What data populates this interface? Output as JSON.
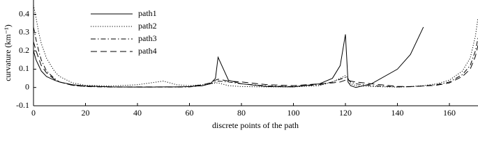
{
  "chart_data": {
    "type": "line",
    "x_label": "discrete points of the path",
    "y_label": "curvature (km⁻¹)",
    "x": [
      0,
      1,
      2,
      3,
      5,
      8,
      10,
      15,
      20,
      30,
      40,
      45,
      50,
      55,
      60,
      65,
      68,
      70,
      71,
      75,
      80,
      90,
      100,
      110,
      115,
      118,
      120,
      121,
      122,
      124,
      130,
      140,
      145,
      150,
      155,
      160,
      165,
      168,
      170,
      171
    ],
    "series": [
      {
        "name": "path1",
        "color": "#000000",
        "dash": "solid",
        "values": [
          0.2,
          0.15,
          0.12,
          0.09,
          0.06,
          0.04,
          0.03,
          0.015,
          0.008,
          0.003,
          0.002,
          0.002,
          0.003,
          0.003,
          0.005,
          0.01,
          0.02,
          0.05,
          0.165,
          0.04,
          0.02,
          0.005,
          0.003,
          0.02,
          0.05,
          0.12,
          0.29,
          0.03,
          0.01,
          0,
          0.02,
          0.1,
          0.18,
          0.33,
          null,
          null,
          null,
          null,
          null,
          null
        ]
      },
      {
        "name": "path2",
        "color": "#000000",
        "dash": "dotted",
        "values": [
          0.45,
          0.38,
          0.3,
          0.24,
          0.16,
          0.09,
          0.06,
          0.025,
          0.012,
          0.008,
          0.015,
          0.025,
          0.035,
          0.015,
          0.01,
          0.015,
          0.02,
          0.025,
          0.025,
          0.01,
          0.005,
          0.003,
          0.003,
          0.01,
          0.03,
          0.05,
          0.065,
          0.05,
          0.02,
          0.01,
          0.005,
          0.002,
          0.005,
          0.01,
          0.02,
          0.04,
          0.09,
          0.16,
          0.28,
          0.38
        ]
      },
      {
        "name": "path3",
        "color": "#000000",
        "dash": "dashdot",
        "values": [
          0.33,
          0.26,
          0.2,
          0.15,
          0.09,
          0.05,
          0.03,
          0.012,
          0.005,
          0.002,
          0.002,
          0.002,
          0.002,
          0.002,
          0.003,
          0.01,
          0.02,
          0.03,
          0.035,
          0.03,
          0.02,
          0.008,
          0.005,
          0.015,
          0.03,
          0.045,
          0.055,
          0.045,
          0.03,
          0.02,
          0.01,
          0.003,
          0.004,
          0.008,
          0.015,
          0.03,
          0.07,
          0.12,
          0.2,
          0.27
        ]
      },
      {
        "name": "path4",
        "color": "#000000",
        "dash": "dashed",
        "values": [
          0.25,
          0.2,
          0.16,
          0.12,
          0.08,
          0.045,
          0.03,
          0.012,
          0.006,
          0.003,
          0.003,
          0.003,
          0.003,
          0.003,
          0.005,
          0.015,
          0.025,
          0.04,
          0.045,
          0.035,
          0.03,
          0.015,
          0.01,
          0.02,
          0.025,
          0.03,
          0.04,
          0.04,
          0.035,
          0.03,
          0.02,
          0.006,
          0.005,
          0.008,
          0.012,
          0.025,
          0.06,
          0.1,
          0.17,
          0.23
        ]
      }
    ],
    "xlim": [
      0,
      171
    ],
    "xticks": [
      0,
      20,
      40,
      60,
      80,
      100,
      120,
      140,
      160
    ],
    "ylim": [
      -0.1,
      0.478
    ],
    "yticks": [
      -0.1,
      0,
      0.1,
      0.2,
      0.3,
      0.4
    ],
    "legend": "upper left",
    "grid": false
  }
}
